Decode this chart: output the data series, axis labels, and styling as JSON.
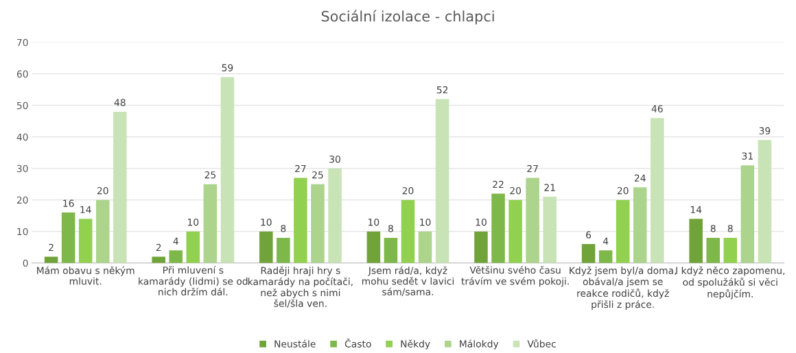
{
  "chart_data": {
    "type": "bar",
    "title": "Sociální izolace - chlapci",
    "categories": [
      "Mám obavu s někým\nmluvit.",
      "Při mluvení s\nkamarády (lidmi) se od\nnich držím dál.",
      "Raději hraji hry s\nkamarády na počítači,\nnež abych s nimi\nšel/šla ven.",
      "Jsem rád/a, když\nmohu sedět v lavici\nsám/sama.",
      "Většinu svého času\ntrávím ve svém pokoji.",
      "Když jsem byl/a doma,\nobával/a jsem se\nreakce rodičů, když\npřišli z práce.",
      "I když něco zapomenu,\nod spolužáků si věci\nnepůjčím."
    ],
    "series": [
      {
        "name": "Neustále",
        "color": "#70a33a",
        "values": [
          2,
          2,
          10,
          10,
          10,
          6,
          14
        ]
      },
      {
        "name": "Často",
        "color": "#7fb84a",
        "values": [
          16,
          4,
          8,
          8,
          22,
          4,
          8
        ]
      },
      {
        "name": "Někdy",
        "color": "#92d050",
        "values": [
          14,
          10,
          27,
          20,
          20,
          20,
          8
        ]
      },
      {
        "name": "Málokdy",
        "color": "#acd48c",
        "values": [
          20,
          25,
          25,
          10,
          27,
          24,
          31
        ]
      },
      {
        "name": "Vůbec",
        "color": "#c8e3b6",
        "values": [
          48,
          59,
          30,
          52,
          21,
          46,
          39
        ]
      }
    ],
    "ylim": [
      0,
      70
    ],
    "yticks": [
      0,
      10,
      20,
      30,
      40,
      50,
      60,
      70
    ],
    "grid": "y",
    "legend": "bottom",
    "data_labels": true
  }
}
